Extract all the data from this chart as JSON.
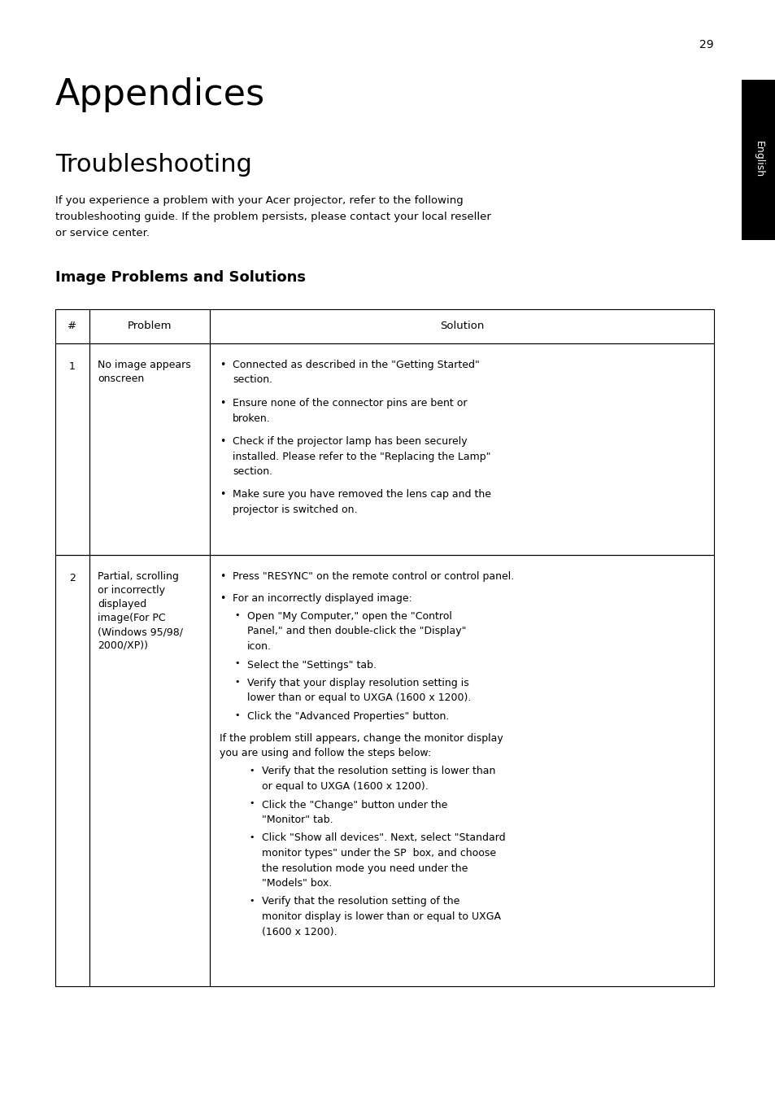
{
  "page_number": "29",
  "title": "Appendices",
  "subtitle": "Troubleshooting",
  "intro_line1": "If you experience a problem with your Acer projector, refer to the following",
  "intro_line2": "troubleshooting guide. If the problem persists, please contact your local reseller",
  "intro_line3": "or service center.",
  "section_title": "Image Problems and Solutions",
  "sidebar_text": "English",
  "sidebar_bg": "#000000",
  "sidebar_text_color": "#ffffff",
  "table_header_hash": "#",
  "table_header_problem": "Problem",
  "table_header_solution": "Solution",
  "row1_num": "1",
  "row1_problem": "No image appears\nonscreen",
  "row2_num": "2",
  "row2_problem": "Partial, scrolling\nor incorrectly\ndisplayed\nimage(For PC\n(Windows 95/98/\n2000/XP))",
  "background_color": "#ffffff",
  "text_color": "#000000"
}
